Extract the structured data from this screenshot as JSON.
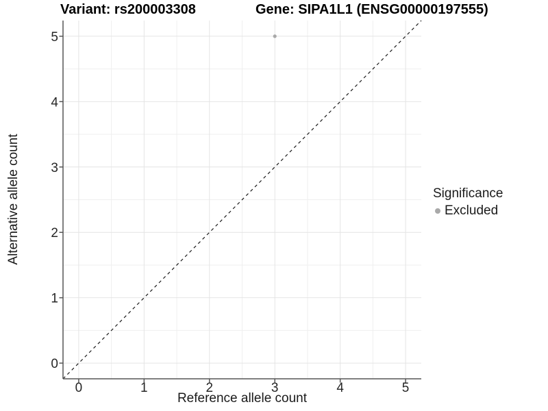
{
  "titles": {
    "left": "Variant: rs200003308",
    "right": "Gene: SIPA1L1 (ENSG00000197555)"
  },
  "chart_data": {
    "type": "scatter",
    "xlabel": "Reference allele count",
    "ylabel": "Alternative allele count",
    "xlim": [
      -0.24,
      5.24
    ],
    "ylim": [
      -0.24,
      5.24
    ],
    "x_ticks": [
      0,
      1,
      2,
      3,
      4,
      5
    ],
    "y_ticks": [
      0,
      1,
      2,
      3,
      4,
      5
    ],
    "x_minor": [
      0.5,
      1.5,
      2.5,
      3.5,
      4.5
    ],
    "y_minor": [
      0.5,
      1.5,
      2.5,
      3.5,
      4.5
    ],
    "grid": {
      "major": true,
      "minor": true
    },
    "points": [
      {
        "x": 3,
        "y": 5,
        "series": "Excluded"
      }
    ],
    "reference_line": {
      "type": "identity",
      "style": "dashed",
      "from": [
        -0.24,
        -0.24
      ],
      "to": [
        5.24,
        5.24
      ]
    },
    "legend": {
      "title": "Significance",
      "position": "right",
      "entries": [
        {
          "label": "Excluded",
          "color": "#a9a9a9",
          "marker": "circle"
        }
      ]
    }
  },
  "colors": {
    "background": "#ffffff",
    "grid_major": "#e4e4e4",
    "grid_minor": "#efefef",
    "axis_line": "#555555",
    "tick_text": "#262626",
    "title_text": "#000000",
    "point": "#a9a9a9",
    "dashed_line": "#1a1a1a"
  }
}
